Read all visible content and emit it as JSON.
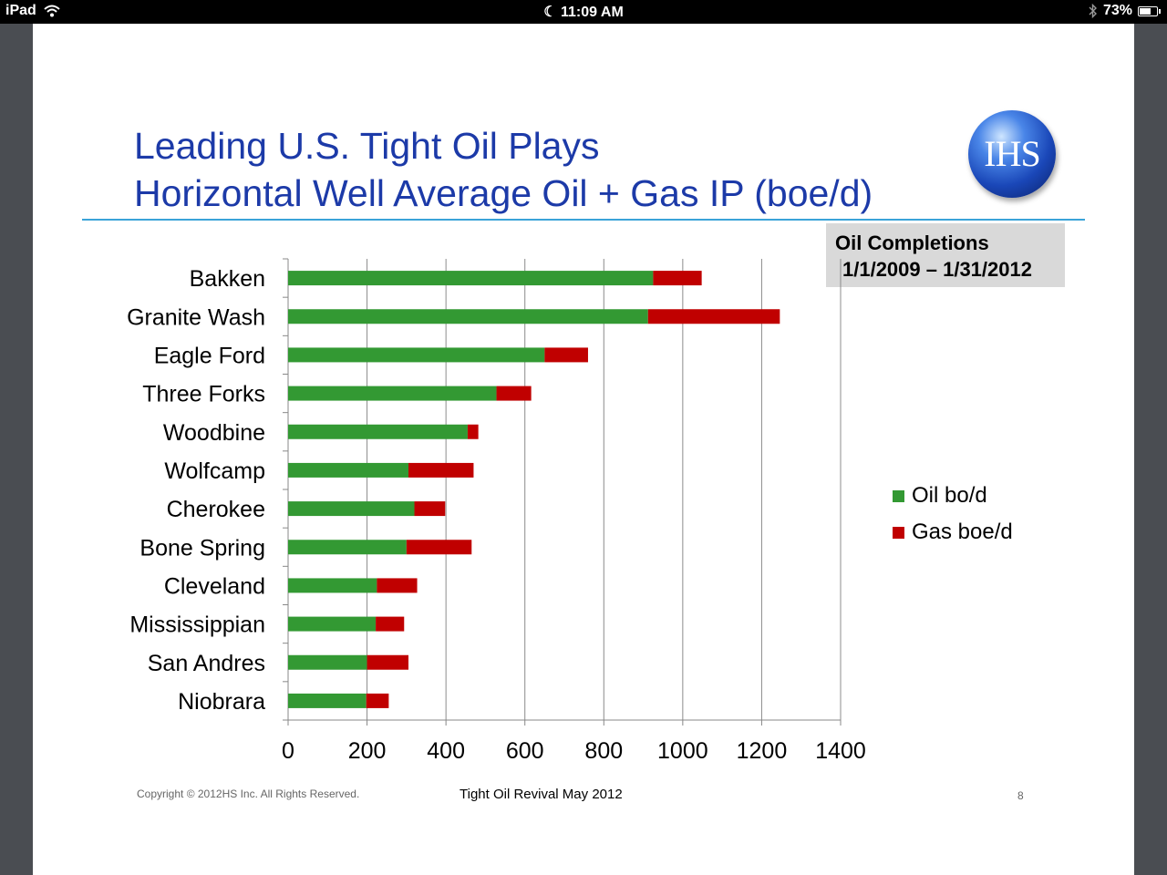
{
  "status_bar": {
    "device": "iPad",
    "time": "11:09 AM",
    "battery": "73%",
    "battery_level": 0.73
  },
  "slide": {
    "title_line1": "Leading U.S. Tight Oil Plays",
    "title_line2": "Horizontal Well Average Oil + Gas IP (boe/d)",
    "logo_text": "IHS",
    "note_line1": "Oil Completions",
    "note_line2": "1/1/2009 – 1/31/2012",
    "copyright": "Copyright © 2012HS Inc. All Rights Reserved.",
    "footer_title": "Tight Oil Revival May 2012",
    "page_number": "8"
  },
  "chart_data": {
    "type": "bar",
    "orientation": "horizontal",
    "stacked": true,
    "categories": [
      "Bakken",
      "Granite Wash",
      "Eagle Ford",
      "Three Forks",
      "Woodbine",
      "Wolfcamp",
      "Cherokee",
      "Bone Spring",
      "Cleveland",
      "Mississippian",
      "San Andres",
      "Niobrara"
    ],
    "series": [
      {
        "name": "Oil bo/d",
        "color": "#339933",
        "values": [
          925,
          912,
          650,
          528,
          455,
          305,
          320,
          300,
          225,
          222,
          200,
          198
        ]
      },
      {
        "name": "Gas boe/d",
        "color": "#c00000",
        "values": [
          123,
          334,
          110,
          88,
          27,
          165,
          78,
          165,
          102,
          72,
          105,
          57
        ]
      }
    ],
    "xlim": [
      0,
      1400
    ],
    "xticks": [
      "0",
      "200",
      "400",
      "600",
      "800",
      "1000",
      "1200",
      "1400"
    ],
    "grid": "vertical",
    "legend_position": "right"
  }
}
